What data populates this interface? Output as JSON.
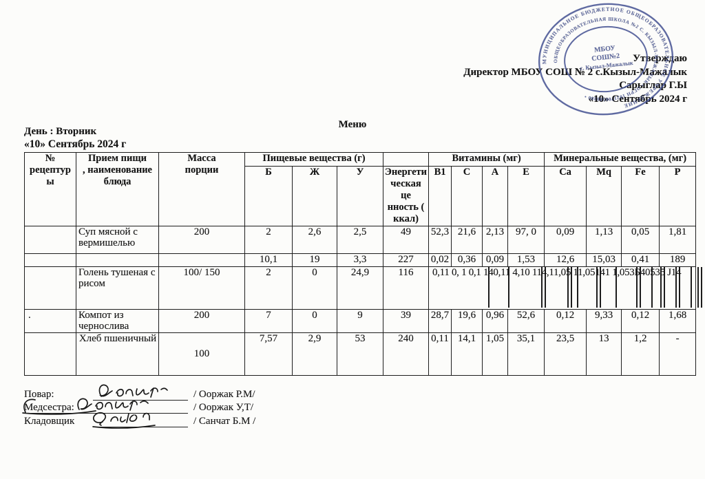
{
  "page": {
    "menu_title": "Меню",
    "day_label": "День : Вторник",
    "date_label": "«10» Сентябрь 2024 г"
  },
  "approval": {
    "line1": "Утверждаю",
    "line2": "Директор МБОУ СОШ № 2 с.Кызыл-Мажалык",
    "line3": "Сарыглар Г.Ы",
    "line4": "«10» Сентябрь 2024 г"
  },
  "stamp": {
    "ring_text_outer": "МУНИЦИПАЛЬНОЕ БЮДЖЕТНОЕ ОБЩЕОБРАЗОВАТЕЛЬНОЕ УЧРЕЖДЕНИЕ",
    "ring_text_inner": "ОБЩЕОБРАЗОВАТЕЛЬНАЯ ШКОЛА №2 С. КЫЗЫЛ-МАЖАЛЫК • ОГРН 1021700580380 •",
    "center_line1": "МБОУ",
    "center_line2": "СОШ№2",
    "center_line3": "с. Кызыл-Мажалык",
    "ink_color": "#3d4b8e"
  },
  "menu_table": {
    "headers": {
      "no": "№\nрецептур\nы",
      "meal": "Прием пищи\n, наименование\nблюда",
      "mass": "Масса\nпорции",
      "nutrients_group": "Пищевые вещества (г)",
      "b": "Б",
      "zh": "Ж",
      "u": "У",
      "energy": "Энергети\nческая це\nнность (\nккал)",
      "vitamins_group": "Витамины (мг)",
      "b1": "В1",
      "c": "С",
      "a": "А",
      "e": "Е",
      "minerals_group": "Минеральные вещества, (мг)",
      "ca": "Са",
      "mq": "Mq",
      "fe": "Fe",
      "p": "Р"
    },
    "rows": [
      {
        "cells": [
          "",
          "Суп мясной с вермишелью",
          "200",
          "2",
          "2,6",
          "2,5",
          "49",
          "52,3",
          "21,6",
          "2,13",
          "97, 0",
          "0,09",
          "1,13",
          "0,05",
          "1,81"
        ]
      },
      {
        "cells": [
          "",
          "",
          "",
          "10,1",
          "19",
          "3,3",
          "227",
          "0,02",
          "0,36",
          "0,09",
          "1,53",
          "12,6",
          "15,03",
          "0,41",
          "189"
        ]
      },
      {
        "cells": [
          "",
          "Голень тушеная с рисом",
          "100/ 150",
          "2",
          "0",
          "24,9",
          "116"
        ],
        "garbled": "0,11  0, 1      0,1 140,11 4,10 114,11,05 11,05141 1,053Б40535 Ј14"
      },
      {
        "cells": [
          ".",
          "Компот из чернослива",
          "200",
          "7",
          "0",
          "9",
          "39",
          "28,7",
          "19,6",
          "0,96",
          "52,6",
          "0,12",
          "9,33",
          "0,12",
          "1,68"
        ]
      },
      {
        "cells": [
          "",
          "Хлеб пшеничный",
          "100",
          "7,57",
          "2,9",
          "53",
          "240",
          "0,11",
          "14,1",
          "1,05",
          "35,1",
          "23,5",
          "13",
          "1,2",
          "-"
        ]
      }
    ]
  },
  "signatures": [
    {
      "role": "Повар:",
      "name": "/ Ооржак Р.М/"
    },
    {
      "role": "Медсестра:",
      "name": "/ Ооржак У,Т/"
    },
    {
      "role": "Кладовщик",
      "name": "/ Санчат Б.М /"
    }
  ]
}
